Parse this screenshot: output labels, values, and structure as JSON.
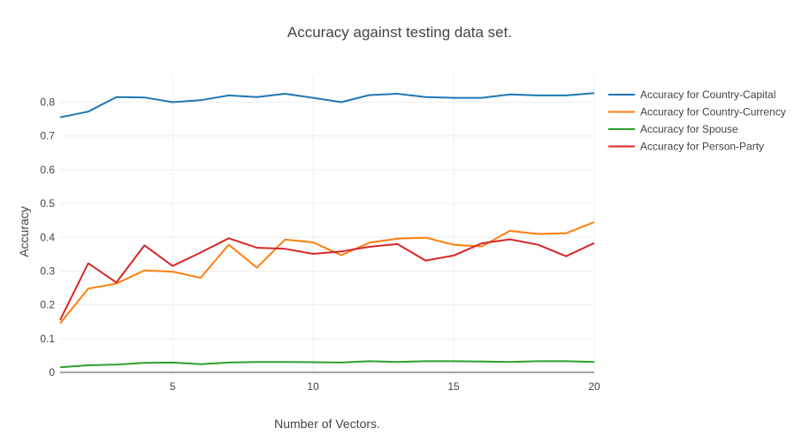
{
  "chart_data": {
    "type": "line",
    "title": "Accuracy against testing data set.",
    "xlabel": "Number of Vectors.",
    "ylabel": "Accuracy",
    "xlim": [
      1,
      20
    ],
    "ylim": [
      0,
      0.88
    ],
    "xticks": [
      5,
      10,
      15,
      20
    ],
    "yticks": [
      0,
      0.1,
      0.2,
      0.3,
      0.4,
      0.5,
      0.6,
      0.7,
      0.8
    ],
    "grid": true,
    "legend_position": "top-right",
    "x": [
      1,
      2,
      3,
      4,
      5,
      6,
      7,
      8,
      9,
      10,
      11,
      12,
      13,
      14,
      15,
      16,
      17,
      18,
      19,
      20
    ],
    "series": [
      {
        "name": "Accuracy for Country-Capital",
        "color": "#1f77b4",
        "values": [
          0.755,
          0.772,
          0.815,
          0.814,
          0.8,
          0.806,
          0.82,
          0.815,
          0.825,
          0.813,
          0.8,
          0.821,
          0.825,
          0.815,
          0.813,
          0.813,
          0.823,
          0.82,
          0.82,
          0.827
        ]
      },
      {
        "name": "Accuracy for Country-Currency",
        "color": "#ff7f0e",
        "values": [
          0.145,
          0.248,
          0.263,
          0.302,
          0.298,
          0.28,
          0.378,
          0.31,
          0.393,
          0.385,
          0.347,
          0.384,
          0.396,
          0.399,
          0.378,
          0.373,
          0.419,
          0.41,
          0.412,
          0.445
        ]
      },
      {
        "name": "Accuracy for Spouse",
        "color": "#2ca02c",
        "values": [
          0.015,
          0.021,
          0.023,
          0.028,
          0.029,
          0.024,
          0.029,
          0.031,
          0.031,
          0.03,
          0.029,
          0.033,
          0.031,
          0.033,
          0.033,
          0.032,
          0.031,
          0.033,
          0.033,
          0.031
        ]
      },
      {
        "name": "Accuracy for Person-Party",
        "color": "#d62728",
        "values": [
          0.155,
          0.323,
          0.266,
          0.376,
          0.315,
          0.355,
          0.397,
          0.369,
          0.366,
          0.351,
          0.358,
          0.372,
          0.38,
          0.331,
          0.346,
          0.382,
          0.394,
          0.378,
          0.344,
          0.383
        ]
      }
    ]
  }
}
